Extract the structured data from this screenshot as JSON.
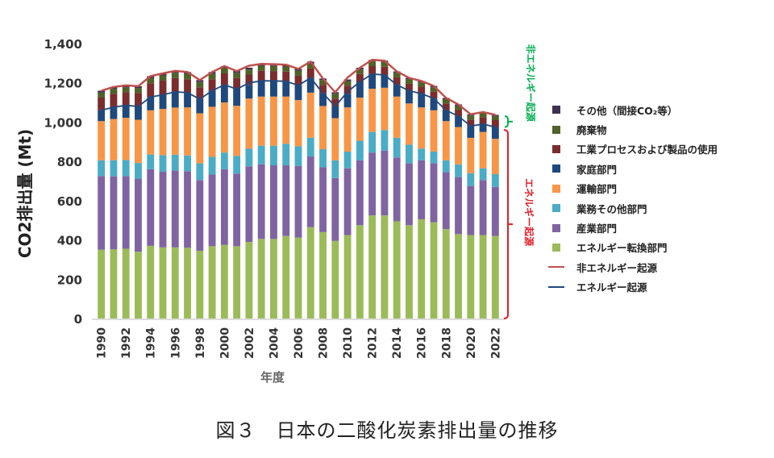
{
  "chart_data": {
    "type": "stacked-bar+line",
    "title": "",
    "xlabel": "年度",
    "ylabel": "CO2排出量 (Mt)",
    "ylim": [
      0,
      1400
    ],
    "yticks": [
      "0",
      "200",
      "400",
      "600",
      "800",
      "1,000",
      "1,200",
      "1,400"
    ],
    "categories": [
      1990,
      1991,
      1992,
      1993,
      1994,
      1995,
      1996,
      1997,
      1998,
      1999,
      2000,
      2001,
      2002,
      2003,
      2004,
      2005,
      2006,
      2007,
      2008,
      2009,
      2010,
      2011,
      2012,
      2013,
      2014,
      2015,
      2016,
      2017,
      2018,
      2019,
      2020,
      2021,
      2022
    ],
    "xtick_labels": [
      "1990",
      "1992",
      "1994",
      "1996",
      "1998",
      "2000",
      "2002",
      "2004",
      "2006",
      "2008",
      "2010",
      "2012",
      "2014",
      "2016",
      "2018",
      "2020",
      "2022"
    ],
    "series": [
      {
        "name": "エネルギー転換部門",
        "color": "#9BBB59",
        "values": [
          350,
          352,
          355,
          340,
          370,
          362,
          362,
          360,
          345,
          368,
          375,
          368,
          390,
          405,
          405,
          420,
          412,
          465,
          440,
          395,
          425,
          475,
          525,
          525,
          495,
          475,
          505,
          490,
          455,
          430,
          425,
          425,
          420
        ]
      },
      {
        "name": "産業部門",
        "color": "#8064A2",
        "values": [
          375,
          372,
          370,
          372,
          390,
          385,
          392,
          390,
          360,
          365,
          385,
          370,
          385,
          380,
          375,
          360,
          365,
          360,
          330,
          320,
          340,
          330,
          320,
          330,
          325,
          315,
          300,
          300,
          290,
          290,
          250,
          280,
          250
        ]
      },
      {
        "name": "業務その他部門",
        "color": "#4BACC6",
        "values": [
          80,
          82,
          82,
          80,
          75,
          85,
          80,
          80,
          85,
          90,
          85,
          90,
          90,
          95,
          100,
          110,
          100,
          95,
          92,
          90,
          85,
          100,
          105,
          105,
          100,
          95,
          60,
          60,
          60,
          65,
          65,
          60,
          65
        ]
      },
      {
        "name": "運輸部門",
        "color": "#F79646",
        "values": [
          200,
          210,
          215,
          220,
          225,
          235,
          240,
          245,
          255,
          255,
          255,
          255,
          255,
          250,
          250,
          240,
          235,
          230,
          220,
          215,
          225,
          220,
          220,
          215,
          210,
          210,
          210,
          210,
          200,
          190,
          180,
          185,
          180
        ]
      },
      {
        "name": "家庭部門",
        "color": "#1F497D",
        "values": [
          55,
          60,
          63,
          68,
          68,
          72,
          80,
          75,
          72,
          82,
          90,
          85,
          70,
          80,
          80,
          78,
          75,
          75,
          65,
          60,
          70,
          80,
          75,
          65,
          60,
          65,
          70,
          60,
          55,
          55,
          60,
          40,
          60
        ]
      },
      {
        "name": "工業プロセスおよび製品の使用",
        "color": "#7B2C2C",
        "values": [
          65,
          68,
          67,
          68,
          70,
          72,
          70,
          68,
          60,
          58,
          58,
          56,
          52,
          51,
          50,
          49,
          49,
          48,
          43,
          40,
          40,
          40,
          40,
          42,
          38,
          35,
          35,
          35,
          35,
          33,
          33,
          35,
          35
        ]
      },
      {
        "name": "廃棄物",
        "color": "#4F6228",
        "values": [
          25,
          25,
          25,
          25,
          26,
          27,
          27,
          27,
          27,
          27,
          27,
          27,
          26,
          26,
          26,
          26,
          26,
          26,
          24,
          24,
          24,
          24,
          24,
          24,
          23,
          23,
          22,
          22,
          22,
          21,
          21,
          20,
          21
        ]
      },
      {
        "name": "その他（間接CO₂等）",
        "color": "#3F3151",
        "values": [
          10,
          10,
          10,
          10,
          10,
          10,
          10,
          10,
          10,
          10,
          10,
          9,
          9,
          9,
          9,
          9,
          9,
          9,
          8,
          8,
          8,
          8,
          8,
          7,
          7,
          7,
          7,
          7,
          6,
          6,
          6,
          6,
          6
        ]
      }
    ],
    "lines": [
      {
        "name": "非エネルギー起源",
        "color": "#C0504D",
        "values": [
          1160,
          1179,
          1187,
          1183,
          1234,
          1248,
          1261,
          1255,
          1214,
          1255,
          1285,
          1260,
          1287,
          1296,
          1295,
          1292,
          1271,
          1308,
          1222,
          1152,
          1227,
          1277,
          1317,
          1313,
          1258,
          1225,
          1209,
          1184,
          1123,
          1090,
          1040,
          1051,
          1037
        ]
      },
      {
        "name": "エネルギー起源",
        "color": "#1F497D",
        "values": [
          1060,
          1076,
          1085,
          1080,
          1128,
          1139,
          1154,
          1150,
          1117,
          1160,
          1190,
          1168,
          1200,
          1210,
          1210,
          1208,
          1187,
          1225,
          1147,
          1080,
          1155,
          1205,
          1245,
          1240,
          1190,
          1160,
          1145,
          1120,
          1060,
          1030,
          980,
          990,
          975
        ]
      }
    ],
    "brackets": [
      {
        "label": "非エネルギー起源",
        "color": "#00B050"
      },
      {
        "label": "エネルギー起源",
        "color": "#E0202A"
      }
    ]
  },
  "legend": {
    "items": [
      "その他（間接CO₂等）",
      "廃棄物",
      "工業プロセスおよび製品の使用",
      "家庭部門",
      "運輸部門",
      "業務その他部門",
      "産業部門",
      "エネルギー転換部門",
      "非エネルギー起源",
      "エネルギー起源"
    ]
  },
  "caption": "図３　日本の二酸化炭素排出量の推移"
}
